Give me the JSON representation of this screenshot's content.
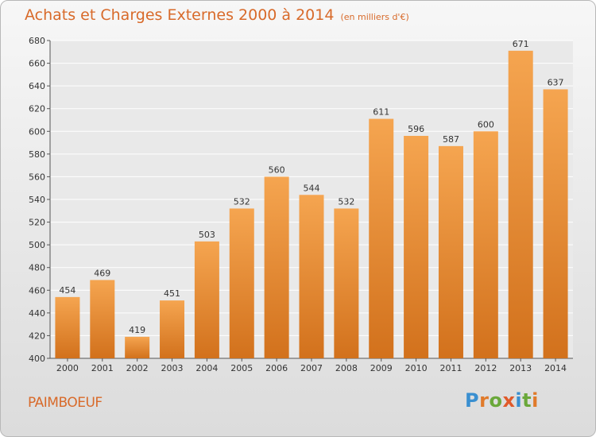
{
  "header": {
    "title": "Achats et Charges Externes 2000 à 2014",
    "subtitle": "(en milliers d'€)"
  },
  "footer": {
    "town": "PAIMBOEUF",
    "logo_text": "Proxiti",
    "logo_colors": [
      "#3a8fd0",
      "#e07a2a",
      "#6aa83a",
      "#e05a2a",
      "#3a8fd0",
      "#6aa83a",
      "#e07a2a"
    ]
  },
  "colors": {
    "bar_light": "#f5a550",
    "bar_dark": "#d2711c",
    "title": "#d86a2a",
    "grid": "#ffffff"
  },
  "chart_data": {
    "type": "bar",
    "categories": [
      "2000",
      "2001",
      "2002",
      "2003",
      "2004",
      "2005",
      "2006",
      "2007",
      "2008",
      "2009",
      "2010",
      "2011",
      "2012",
      "2013",
      "2014"
    ],
    "values": [
      454,
      469,
      419,
      451,
      503,
      532,
      560,
      544,
      532,
      611,
      596,
      587,
      600,
      671,
      637
    ],
    "ylim": [
      400,
      680
    ],
    "yticks": [
      400,
      420,
      440,
      460,
      480,
      500,
      520,
      540,
      560,
      580,
      600,
      620,
      640,
      660,
      680
    ],
    "grid": true,
    "data_labels": true
  }
}
